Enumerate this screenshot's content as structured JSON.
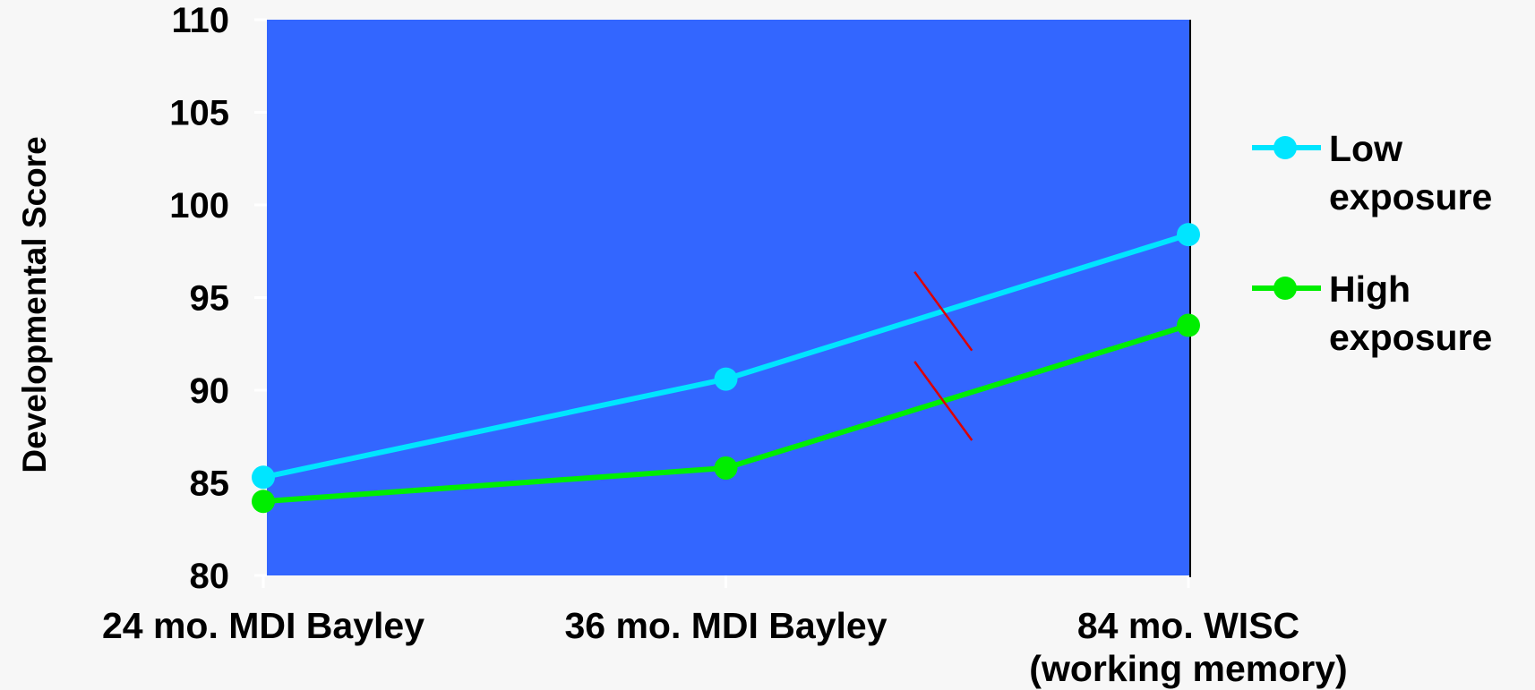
{
  "chart_data": {
    "type": "line",
    "title": "",
    "xlabel": "",
    "ylabel": "Developmental Score",
    "ylim": [
      80,
      110
    ],
    "yticks": [
      80,
      85,
      90,
      95,
      100,
      105,
      110
    ],
    "categories": [
      [
        "24 mo. MDI Bayley"
      ],
      [
        "36 mo. MDI Bayley"
      ],
      [
        "84 mo. WISC",
        "(working memory)"
      ]
    ],
    "series": [
      {
        "name_lines": [
          "Low",
          "exposure"
        ],
        "color": "#00e5ff",
        "values": [
          85.3,
          90.6,
          98.4
        ]
      },
      {
        "name_lines": [
          "High",
          "exposure"
        ],
        "color": "#00ee00",
        "values": [
          84.0,
          85.8,
          93.5
        ]
      }
    ],
    "plot_background": "#3366ff",
    "grid": false,
    "legend_position": "right",
    "annotation_color": "#dd0000"
  }
}
